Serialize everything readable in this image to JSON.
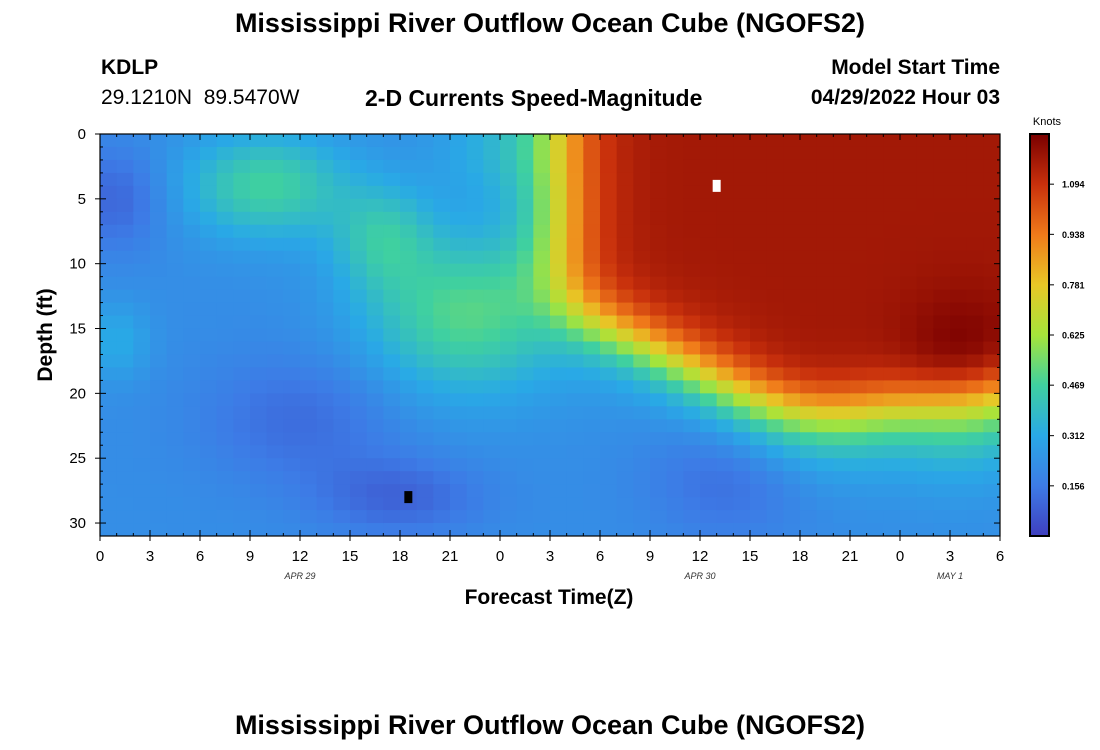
{
  "page": {
    "title_top": "Mississippi River Outflow Ocean Cube (NGOFS2)",
    "title_bottom": "Mississippi River Outflow Ocean Cube (NGOFS2)",
    "station_id": "KDLP",
    "coordinates": "29.1210N  89.5470W",
    "subtitle": "2-D Currents Speed-Magnitude",
    "model_start_label": "Model Start Time",
    "model_start_value": "04/29/2022 Hour 03"
  },
  "chart_data": {
    "type": "heatmap",
    "xlabel": "Forecast Time(Z)",
    "ylabel": "Depth (ft)",
    "x_tick_labels": [
      "0",
      "3",
      "6",
      "9",
      "12",
      "15",
      "18",
      "21",
      "0",
      "3",
      "6",
      "9",
      "12",
      "15",
      "18",
      "21",
      "0",
      "3",
      "6"
    ],
    "date_labels": [
      {
        "label": "APR 29",
        "at_hour": 12
      },
      {
        "label": "APR 30",
        "at_hour": 36
      },
      {
        "label": "MAY 1",
        "at_hour": 51
      }
    ],
    "x_range_hours": [
      0,
      54
    ],
    "y_ticks": [
      0,
      5,
      10,
      15,
      20,
      25,
      30
    ],
    "ylim": [
      0,
      31
    ],
    "y_inverted": true,
    "colorbar": {
      "unit_label": "Knots",
      "ticks": [
        "0.156",
        "0.312",
        "0.469",
        "0.625",
        "0.781",
        "0.938",
        "1.094"
      ],
      "range": [
        0,
        1.25
      ]
    },
    "grid_resolution": {
      "hours_step": 1,
      "depth_step": 1
    },
    "approx_field_description": "speed (knots) by forecast hour and depth; strong flow after hour ~28 near surface, weaker flow at depth",
    "markers": [
      {
        "kind": "max",
        "hour": 37,
        "depth": 4,
        "color": "#ffffff"
      },
      {
        "kind": "min",
        "hour": 18.5,
        "depth": 28,
        "color": "#000000"
      }
    ]
  }
}
